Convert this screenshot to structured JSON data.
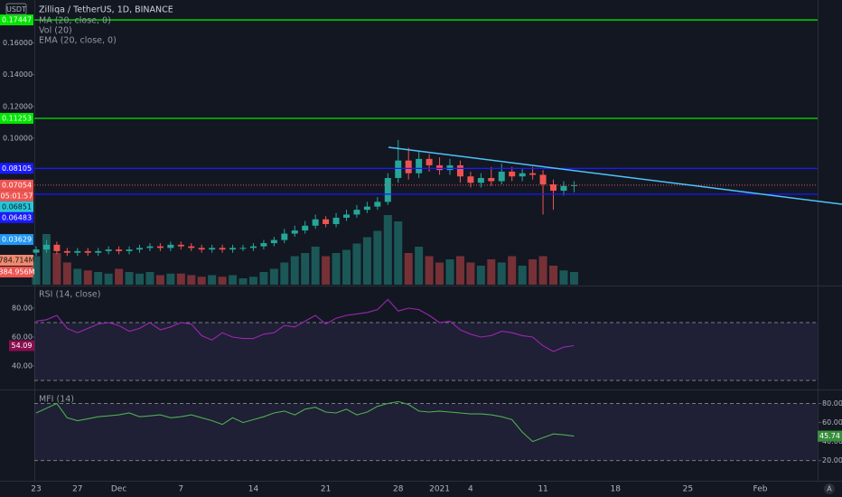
{
  "header": {
    "quote": "USDT",
    "title": "Zilliqa / TetherUS, 1D, BINANCE",
    "indicators": [
      "MA (20, close, 0)",
      "Vol (20)",
      "EMA (20, close, 0)"
    ],
    "corner": "A"
  },
  "chart_data": [
    {
      "type": "candlestick",
      "categories": [
        "23",
        null,
        null,
        null,
        "27",
        null,
        null,
        null,
        "Dec",
        null,
        null,
        null,
        null,
        null,
        "7",
        null,
        null,
        null,
        null,
        null,
        null,
        "14",
        null,
        null,
        null,
        null,
        null,
        null,
        "21",
        null,
        null,
        null,
        null,
        null,
        null,
        "28",
        null,
        null,
        null,
        "2021",
        null,
        null,
        "4",
        null,
        null,
        null,
        null,
        null,
        null,
        "11",
        null,
        null,
        null,
        null,
        null,
        null,
        "18",
        null,
        null,
        null,
        null,
        null,
        null,
        "25",
        null,
        null,
        null,
        null,
        null,
        null,
        "Feb"
      ],
      "open": [
        0.028,
        0.03,
        0.033,
        0.029,
        0.028,
        0.029,
        0.028,
        0.029,
        0.03,
        0.029,
        0.03,
        0.031,
        0.032,
        0.031,
        0.033,
        0.032,
        0.031,
        0.03,
        0.031,
        0.03,
        0.031,
        0.031,
        0.032,
        0.034,
        0.036,
        0.04,
        0.042,
        0.045,
        0.049,
        0.046,
        0.05,
        0.052,
        0.055,
        0.057,
        0.06,
        0.075,
        0.086,
        0.078,
        0.087,
        0.083,
        0.08,
        0.083,
        0.076,
        0.072,
        0.075,
        0.073,
        0.079,
        0.076,
        0.078,
        0.077,
        0.071,
        0.067,
        0.07,
        null,
        null,
        null,
        null,
        null,
        null,
        null,
        null,
        null,
        null,
        null,
        null,
        null,
        null,
        null,
        null,
        null,
        null
      ],
      "high": [
        0.032,
        0.036,
        0.035,
        0.031,
        0.031,
        0.031,
        0.031,
        0.032,
        0.032,
        0.032,
        0.033,
        0.034,
        0.034,
        0.035,
        0.035,
        0.034,
        0.033,
        0.033,
        0.033,
        0.033,
        0.033,
        0.034,
        0.036,
        0.038,
        0.043,
        0.045,
        0.048,
        0.052,
        0.051,
        0.053,
        0.055,
        0.058,
        0.06,
        0.063,
        0.078,
        0.099,
        0.094,
        0.092,
        0.09,
        0.088,
        0.087,
        0.086,
        0.079,
        0.078,
        0.082,
        0.084,
        0.082,
        0.081,
        0.082,
        0.08,
        0.074,
        0.073,
        0.073,
        null,
        null,
        null,
        null,
        null,
        null,
        null,
        null,
        null,
        null,
        null,
        null,
        null,
        null,
        null,
        null,
        null,
        null
      ],
      "low": [
        0.026,
        0.028,
        0.027,
        0.026,
        0.026,
        0.026,
        0.026,
        0.027,
        0.027,
        0.027,
        0.028,
        0.029,
        0.029,
        0.029,
        0.03,
        0.029,
        0.028,
        0.028,
        0.028,
        0.028,
        0.029,
        0.029,
        0.03,
        0.032,
        0.034,
        0.038,
        0.04,
        0.043,
        0.044,
        0.044,
        0.048,
        0.05,
        0.053,
        0.055,
        0.058,
        0.072,
        0.074,
        0.075,
        0.079,
        0.077,
        0.077,
        0.072,
        0.069,
        0.069,
        0.07,
        0.071,
        0.073,
        0.073,
        0.074,
        0.052,
        0.055,
        0.064,
        0.066,
        null,
        null,
        null,
        null,
        null,
        null,
        null,
        null,
        null,
        null,
        null,
        null,
        null,
        null,
        null,
        null,
        null,
        null
      ],
      "close": [
        0.03,
        0.033,
        0.029,
        0.028,
        0.029,
        0.028,
        0.029,
        0.03,
        0.029,
        0.03,
        0.031,
        0.032,
        0.031,
        0.033,
        0.032,
        0.031,
        0.03,
        0.031,
        0.03,
        0.031,
        0.031,
        0.032,
        0.034,
        0.036,
        0.04,
        0.042,
        0.045,
        0.049,
        0.046,
        0.05,
        0.052,
        0.055,
        0.057,
        0.06,
        0.075,
        0.086,
        0.078,
        0.087,
        0.083,
        0.08,
        0.083,
        0.076,
        0.072,
        0.075,
        0.073,
        0.079,
        0.076,
        0.078,
        0.077,
        0.071,
        0.067,
        0.07,
        0.07054,
        null,
        null,
        null,
        null,
        null,
        null,
        null,
        null,
        null,
        null,
        null,
        null,
        null,
        null,
        null,
        null,
        null,
        null
      ],
      "volume": [
        900,
        1600,
        1000,
        700,
        500,
        450,
        400,
        350,
        500,
        400,
        350,
        400,
        300,
        350,
        350,
        300,
        250,
        300,
        250,
        300,
        200,
        250,
        400,
        500,
        700,
        900,
        1000,
        1200,
        900,
        1000,
        1100,
        1300,
        1500,
        1700,
        2200,
        2000,
        1000,
        1200,
        900,
        700,
        800,
        900,
        700,
        600,
        800,
        700,
        900,
        600,
        800,
        900,
        600,
        450,
        400,
        null,
        null,
        null,
        null,
        null,
        null,
        null,
        null,
        null,
        null,
        null,
        null,
        null,
        null,
        null,
        null,
        null,
        null
      ],
      "ylim": [
        0.0079,
        0.187
      ],
      "yticks": [
        {
          "value": 0.1,
          "label": "0.10000"
        },
        {
          "value": 0.12,
          "label": "0.12000"
        },
        {
          "value": 0.14,
          "label": "0.14000"
        },
        {
          "value": 0.16,
          "label": "0.16000"
        }
      ],
      "vlim": [
        0,
        9000
      ],
      "up_color": "#26a69a",
      "down_color": "#ef5350",
      "last_label_color": "#ef5350",
      "levels": [
        {
          "value": 0.17447,
          "color": "#00e600"
        },
        {
          "value": 0.11253,
          "color": "#00e600"
        },
        {
          "value": 0.08105,
          "color": "#1a1aff"
        },
        {
          "value": 0.06483,
          "color": "#1a1aff"
        }
      ],
      "countdown": "05:01:57",
      "indicator_labels": [
        {
          "value": 0.06851,
          "color": "#26c6da"
        },
        {
          "value": 0.03629,
          "color": "#2196f3"
        }
      ],
      "volume_labels": [
        {
          "text": "784.714M",
          "color": "#f08a6c"
        },
        {
          "text": "384.956M",
          "color": "#ef5350"
        }
      ]
    },
    {
      "type": "line",
      "title": "RSI (14, close)",
      "color": "#9c27b0",
      "label_color": "#880e4f",
      "axis_side": "left",
      "values": [
        71,
        72,
        75,
        66,
        63,
        66,
        69,
        70,
        68,
        64,
        66,
        70,
        65,
        67,
        70,
        69,
        61,
        58,
        63,
        60,
        59,
        59,
        62,
        63,
        68,
        67,
        71,
        75,
        69,
        73,
        75,
        76,
        77,
        79,
        86,
        78,
        80,
        79,
        75,
        70,
        71,
        65,
        62,
        60,
        61,
        64,
        63,
        61,
        60,
        54,
        50,
        53,
        54.09,
        null,
        null,
        null,
        null,
        null,
        null,
        null,
        null,
        null,
        null,
        null,
        null,
        null,
        null,
        null,
        null,
        null,
        null
      ],
      "ylim": [
        24.4,
        94.4
      ],
      "yticks": [
        {
          "value": 40,
          "label": "40.00"
        },
        {
          "value": 60,
          "label": "60.00"
        },
        {
          "value": 80,
          "label": "80.00"
        }
      ],
      "bands": [
        70,
        30
      ]
    },
    {
      "type": "line",
      "title": "MFI (14)",
      "color": "#4caf50",
      "label_color": "#388e3c",
      "axis_side": "right",
      "values": [
        70,
        75,
        80,
        65,
        62,
        64,
        66,
        67,
        68,
        70,
        66,
        67,
        68,
        65,
        66,
        68,
        65,
        62,
        58,
        65,
        60,
        63,
        66,
        70,
        72,
        68,
        74,
        76,
        71,
        70,
        74,
        68,
        71,
        77,
        80,
        82,
        79,
        72,
        71,
        72,
        71,
        70,
        69,
        69,
        68,
        66,
        63,
        50,
        40,
        44,
        48,
        47,
        45.74,
        null,
        null,
        null,
        null,
        null,
        null,
        null,
        null,
        null,
        null,
        null,
        null,
        null,
        null,
        null,
        null,
        null,
        null
      ],
      "ylim": [
        -0.3,
        93.8
      ],
      "yticks": [
        {
          "value": 20,
          "label": "20.00"
        },
        {
          "value": 40,
          "label": "40.00"
        },
        {
          "value": 60,
          "label": "60.00"
        },
        {
          "value": 80,
          "label": "80.00"
        }
      ],
      "bands": [
        80,
        20
      ]
    }
  ]
}
